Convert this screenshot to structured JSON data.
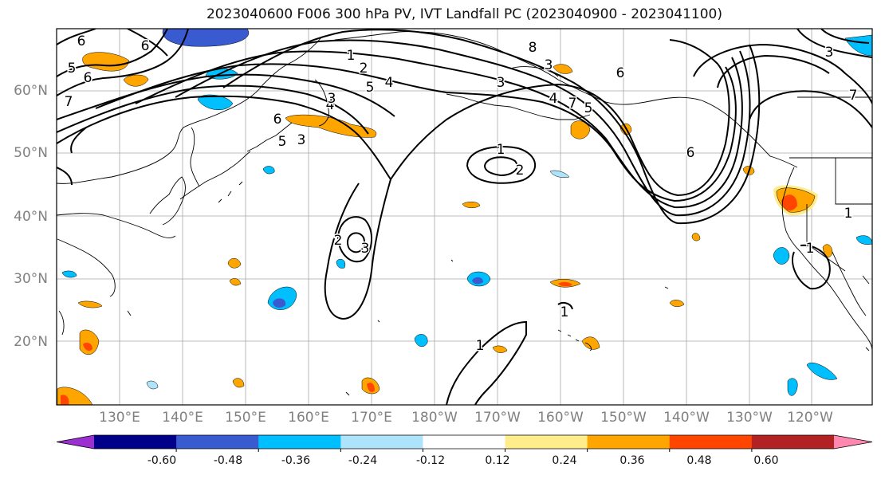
{
  "title": "2023040600 F006 300 hPa PV, IVT Landfall PC (2023040900 - 2023041100)",
  "lat_labels": [
    "60°N",
    "50°N",
    "40°N",
    "30°N",
    "20°N"
  ],
  "lon_labels": [
    "130°E",
    "140°E",
    "150°E",
    "160°E",
    "170°E",
    "180°W",
    "170°W",
    "160°W",
    "150°W",
    "140°W",
    "130°W",
    "120°W"
  ],
  "colorbar": {
    "tick_labels": [
      "-0.60",
      "-0.48",
      "-0.36",
      "-0.24",
      "-0.12",
      "0.12",
      "0.24",
      "0.36",
      "0.48",
      "0.60"
    ],
    "colors": [
      "#9b30d0",
      "#00008b",
      "#3a5bd0",
      "#00bfff",
      "#aee3fc",
      "#ffffff",
      "#ffec8b",
      "#ffa500",
      "#ff4500",
      "#b22222",
      "#ff88b0"
    ]
  },
  "contour_labels": [
    "6",
    "6",
    "5",
    "6",
    "7",
    "1",
    "2",
    "5",
    "4",
    "6",
    "5",
    "3",
    "4",
    "3",
    "2",
    "1",
    "2",
    "3",
    "3",
    "8",
    "6",
    "5",
    "7",
    "4",
    "3",
    "6",
    "7",
    "1",
    "3",
    "1",
    "1",
    "1"
  ],
  "shading_colors": {
    "positive_low": "#ffec8b",
    "positive_mid": "#ffa500",
    "positive_high": "#ff4500",
    "negative_low": "#aee3fc",
    "negative_mid": "#00bfff",
    "negative_high": "#3a5bd0"
  }
}
